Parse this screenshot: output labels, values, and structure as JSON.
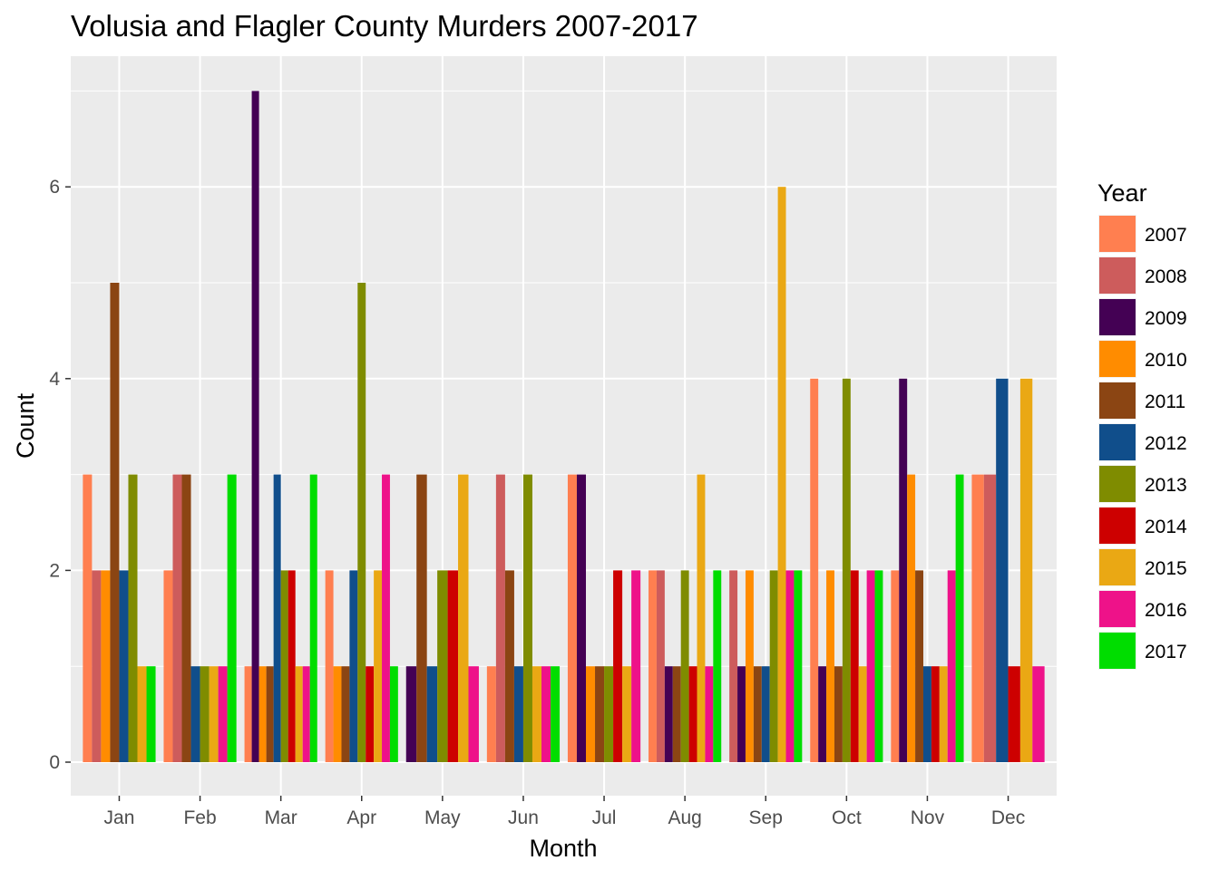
{
  "chart_data": {
    "type": "bar",
    "title": "Volusia and Flagler County Murders 2007-2017",
    "xlabel": "Month",
    "ylabel": "Count",
    "ylim": [
      -0.3,
      7.3
    ],
    "yticks": [
      0,
      2,
      4,
      6
    ],
    "grid": true,
    "legend_title": "Year",
    "legend_position": "right",
    "categories": [
      "Jan",
      "Feb",
      "Mar",
      "Apr",
      "May",
      "Jun",
      "Jul",
      "Aug",
      "Sep",
      "Oct",
      "Nov",
      "Dec"
    ],
    "bars": [
      {
        "month": "Jan",
        "years": [
          "2007",
          "2008",
          "2010",
          "2011",
          "2012",
          "2013",
          "2015",
          "2017"
        ],
        "values": [
          3,
          2,
          2,
          5,
          2,
          3,
          1,
          1
        ]
      },
      {
        "month": "Feb",
        "years": [
          "2007",
          "2008",
          "2011",
          "2012",
          "2013",
          "2015",
          "2016",
          "2017"
        ],
        "values": [
          2,
          3,
          3,
          1,
          1,
          1,
          1,
          3
        ]
      },
      {
        "month": "Mar",
        "years": [
          "2007",
          "2009",
          "2010",
          "2011",
          "2012",
          "2013",
          "2014",
          "2015",
          "2016",
          "2017"
        ],
        "values": [
          1,
          7,
          1,
          1,
          3,
          2,
          2,
          1,
          1,
          3
        ]
      },
      {
        "month": "Apr",
        "years": [
          "2007",
          "2010",
          "2011",
          "2012",
          "2013",
          "2014",
          "2015",
          "2016",
          "2017"
        ],
        "values": [
          2,
          1,
          1,
          2,
          5,
          1,
          2,
          3,
          1
        ]
      },
      {
        "month": "May",
        "years": [
          "2009",
          "2011",
          "2012",
          "2013",
          "2014",
          "2015",
          "2016"
        ],
        "values": [
          1,
          3,
          1,
          2,
          2,
          3,
          1
        ]
      },
      {
        "month": "Jun",
        "years": [
          "2007",
          "2008",
          "2011",
          "2012",
          "2013",
          "2015",
          "2016",
          "2017"
        ],
        "values": [
          1,
          3,
          2,
          1,
          3,
          1,
          1,
          1
        ]
      },
      {
        "month": "Jul",
        "years": [
          "2007",
          "2009",
          "2010",
          "2011",
          "2013",
          "2014",
          "2015",
          "2016"
        ],
        "values": [
          3,
          3,
          1,
          1,
          1,
          2,
          1,
          2
        ]
      },
      {
        "month": "Aug",
        "years": [
          "2007",
          "2008",
          "2009",
          "2011",
          "2013",
          "2014",
          "2015",
          "2016",
          "2017"
        ],
        "values": [
          2,
          2,
          1,
          1,
          2,
          1,
          3,
          1,
          2
        ]
      },
      {
        "month": "Sep",
        "years": [
          "2008",
          "2009",
          "2010",
          "2011",
          "2012",
          "2013",
          "2015",
          "2016",
          "2017"
        ],
        "values": [
          2,
          1,
          2,
          1,
          1,
          2,
          6,
          2,
          2
        ]
      },
      {
        "month": "Oct",
        "years": [
          "2007",
          "2009",
          "2010",
          "2011",
          "2013",
          "2014",
          "2015",
          "2016",
          "2017"
        ],
        "values": [
          4,
          1,
          2,
          1,
          4,
          2,
          1,
          2,
          2
        ]
      },
      {
        "month": "Nov",
        "years": [
          "2007",
          "2009",
          "2010",
          "2011",
          "2012",
          "2014",
          "2015",
          "2016",
          "2017"
        ],
        "values": [
          2,
          4,
          3,
          2,
          1,
          1,
          1,
          2,
          3
        ]
      },
      {
        "month": "Dec",
        "years": [
          "2007",
          "2008",
          "2012",
          "2014",
          "2015",
          "2016"
        ],
        "values": [
          3,
          3,
          4,
          1,
          4,
          1
        ]
      }
    ],
    "legend": [
      {
        "year": "2007",
        "color": "#FF7F50"
      },
      {
        "year": "2008",
        "color": "#CD5C5C"
      },
      {
        "year": "2009",
        "color": "#440154"
      },
      {
        "year": "2010",
        "color": "#FF8C00"
      },
      {
        "year": "2011",
        "color": "#8B4513"
      },
      {
        "year": "2012",
        "color": "#104E8B"
      },
      {
        "year": "2013",
        "color": "#7F8C00"
      },
      {
        "year": "2014",
        "color": "#CD0000"
      },
      {
        "year": "2015",
        "color": "#EAA814"
      },
      {
        "year": "2016",
        "color": "#EE1289"
      },
      {
        "year": "2017",
        "color": "#00DD00"
      }
    ]
  }
}
